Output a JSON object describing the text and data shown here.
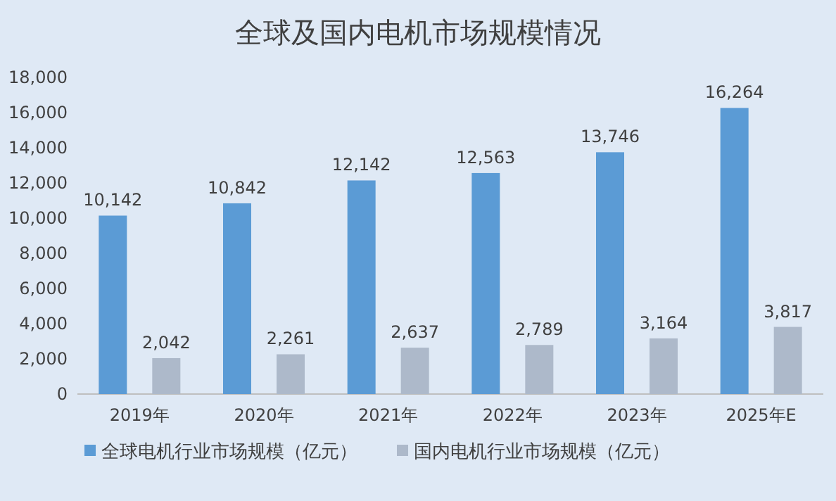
{
  "chart_data": {
    "type": "bar",
    "title": "全球及国内电机市场规模情况",
    "categories": [
      "2019年",
      "2020年",
      "2021年",
      "2022年",
      "2023年",
      "2025年E"
    ],
    "series": [
      {
        "name": "全球电机行业市场规模（亿元）",
        "color": "#5b9bd5",
        "values": [
          10142,
          10842,
          12142,
          12563,
          13746,
          16264
        ],
        "value_labels": [
          "10,142",
          "10,842",
          "12,142",
          "12,563",
          "13,746",
          "16,264"
        ]
      },
      {
        "name": "国内电机行业市场规模（亿元）",
        "color": "#adb9ca",
        "values": [
          2042,
          2261,
          2637,
          2789,
          3164,
          3817
        ],
        "value_labels": [
          "2,042",
          "2,261",
          "2,637",
          "2,789",
          "3,164",
          "3,817"
        ]
      }
    ],
    "ylim": [
      0,
      18000
    ],
    "yticks": [
      {
        "value": 0,
        "label": "0"
      },
      {
        "value": 2000,
        "label": "2,000"
      },
      {
        "value": 4000,
        "label": "4,000"
      },
      {
        "value": 6000,
        "label": "6,000"
      },
      {
        "value": 8000,
        "label": "8,000"
      },
      {
        "value": 10000,
        "label": "10,000"
      },
      {
        "value": 12000,
        "label": "12,000"
      },
      {
        "value": 14000,
        "label": "14,000"
      },
      {
        "value": 16000,
        "label": "16,000"
      },
      {
        "value": 18000,
        "label": "18,000"
      }
    ],
    "legend": "bottom"
  }
}
